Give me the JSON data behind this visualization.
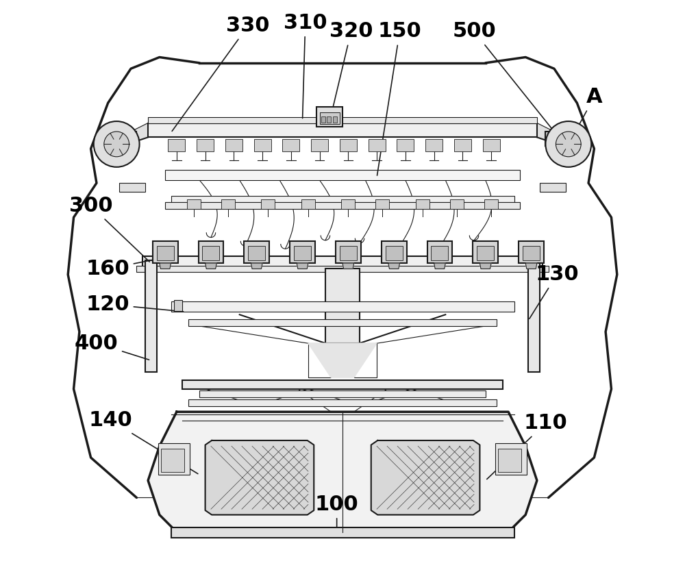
{
  "bg_color": "#ffffff",
  "line_color": "#1a1a1a",
  "label_color": "#000000",
  "label_fontsize": 22,
  "figsize": [
    10.0,
    8.35
  ],
  "dpi": 100
}
